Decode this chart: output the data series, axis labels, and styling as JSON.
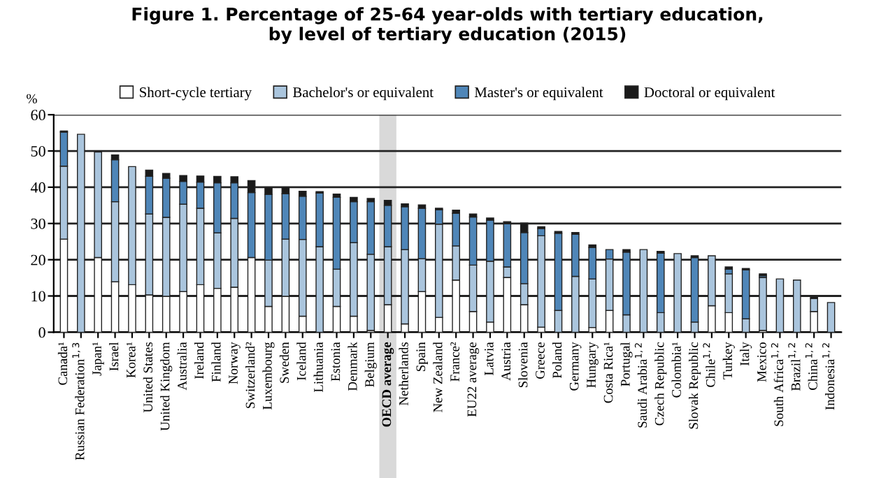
{
  "chart_data": {
    "type": "bar",
    "stacked": true,
    "title": "Figure 1. Percentage of 25-64 year-olds with tertiary education,\nby level of tertiary education (2015)",
    "ylabel": "%",
    "categories": [
      "Canada¹",
      "Russian Federation$^{1,3}$",
      "Japan¹",
      "Israel",
      "Korea¹",
      "United States",
      "United Kingdom",
      "Australia",
      "Ireland",
      "Finland",
      "Norway",
      "Switzerland²",
      "Luxembourg",
      "Sweden",
      "Iceland",
      "Lithuania",
      "Estonia",
      "Denmark",
      "Belgium",
      "OECD average",
      "Netherlands",
      "Spain",
      "New Zealand",
      "France²",
      "EU22 average",
      "Latvia",
      "Austria",
      "Slovenia",
      "Greece",
      "Poland",
      "Germany",
      "Hungary",
      "Costa Rica¹",
      "Portugal",
      "Saudi Arabia$^{1,2}$",
      "Czech Republic",
      "Colombia¹",
      "Slovak Republic",
      "Chile$^{1,2}$",
      "Turkey",
      "Italy",
      "Mexico",
      "South Africa$^{1,2}$",
      "Brazil$^{1,2}$",
      "China$^{1,2}$",
      "Indonesia$^{1,2}$"
    ],
    "series": [
      {
        "name": "Short-cycle tertiary",
        "color": "#ffffff",
        "values": [
          25.7,
          null,
          20.6,
          13.9,
          13.1,
          10.3,
          9.9,
          11.2,
          13.1,
          12.1,
          12.4,
          20.6,
          7.1,
          9.9,
          4.4,
          null,
          7.1,
          4.4,
          0.5,
          7.6,
          2.3,
          11.2,
          4.1,
          14.4,
          5.7,
          2.8,
          15.1,
          7.6,
          1.4,
          null,
          null,
          1.3,
          6.0,
          null,
          null,
          null,
          null,
          null,
          7.3,
          5.4,
          null,
          0.5,
          null,
          null,
          5.7,
          null
        ]
      },
      {
        "name": "Bachelor's or equivalent",
        "color": "#aac5dd",
        "values": [
          20.1,
          54.6,
          29.1,
          22.1,
          32.6,
          22.3,
          21.8,
          24.1,
          21.1,
          15.3,
          19.0,
          null,
          12.8,
          15.8,
          21.2,
          23.6,
          10.3,
          20.3,
          21.0,
          16.0,
          20.5,
          9.1,
          25.7,
          9.4,
          12.8,
          16.8,
          2.9,
          5.8,
          25.2,
          6.0,
          15.4,
          13.4,
          14.2,
          4.8,
          22.8,
          5.4,
          21.7,
          2.8,
          13.8,
          10.7,
          3.7,
          14.6,
          14.7,
          14.4,
          3.6,
          8.2
        ]
      },
      {
        "name": "Master's or equivalent",
        "color": "#4f86b8",
        "values": [
          9.4,
          null,
          null,
          11.6,
          null,
          10.4,
          10.8,
          6.3,
          7.2,
          13.8,
          9.8,
          17.9,
          18.1,
          12.5,
          11.9,
          14.8,
          19.8,
          11.3,
          14.5,
          11.4,
          11.8,
          13.9,
          4.0,
          9.0,
          13.3,
          11.3,
          11.9,
          14.1,
          2.0,
          21.3,
          11.6,
          8.7,
          2.6,
          17.3,
          null,
          16.4,
          null,
          17.8,
          null,
          1.3,
          13.5,
          0.5,
          null,
          null,
          null,
          null
        ]
      },
      {
        "name": "Doctoral or equivalent",
        "color": "#1a1a1a",
        "values": [
          0.3,
          null,
          null,
          1.3,
          null,
          1.7,
          1.3,
          1.6,
          1.7,
          1.8,
          1.7,
          3.3,
          1.9,
          1.8,
          1.4,
          0.4,
          0.9,
          1.2,
          0.9,
          1.4,
          0.8,
          0.9,
          0.4,
          0.9,
          0.8,
          0.6,
          0.6,
          2.6,
          0.5,
          0.5,
          0.5,
          0.7,
          null,
          0.7,
          null,
          0.5,
          null,
          0.5,
          null,
          0.6,
          0.4,
          0.5,
          null,
          null,
          0.5,
          null
        ]
      }
    ],
    "ylim": [
      0,
      60
    ],
    "yticks": [
      0,
      10,
      20,
      30,
      40,
      50,
      60
    ],
    "grid": "y",
    "legend": "top",
    "bands": [
      {
        "axis": "x",
        "from": "OECD average",
        "to": "OECD average",
        "color": "#d9d9d9"
      }
    ]
  }
}
